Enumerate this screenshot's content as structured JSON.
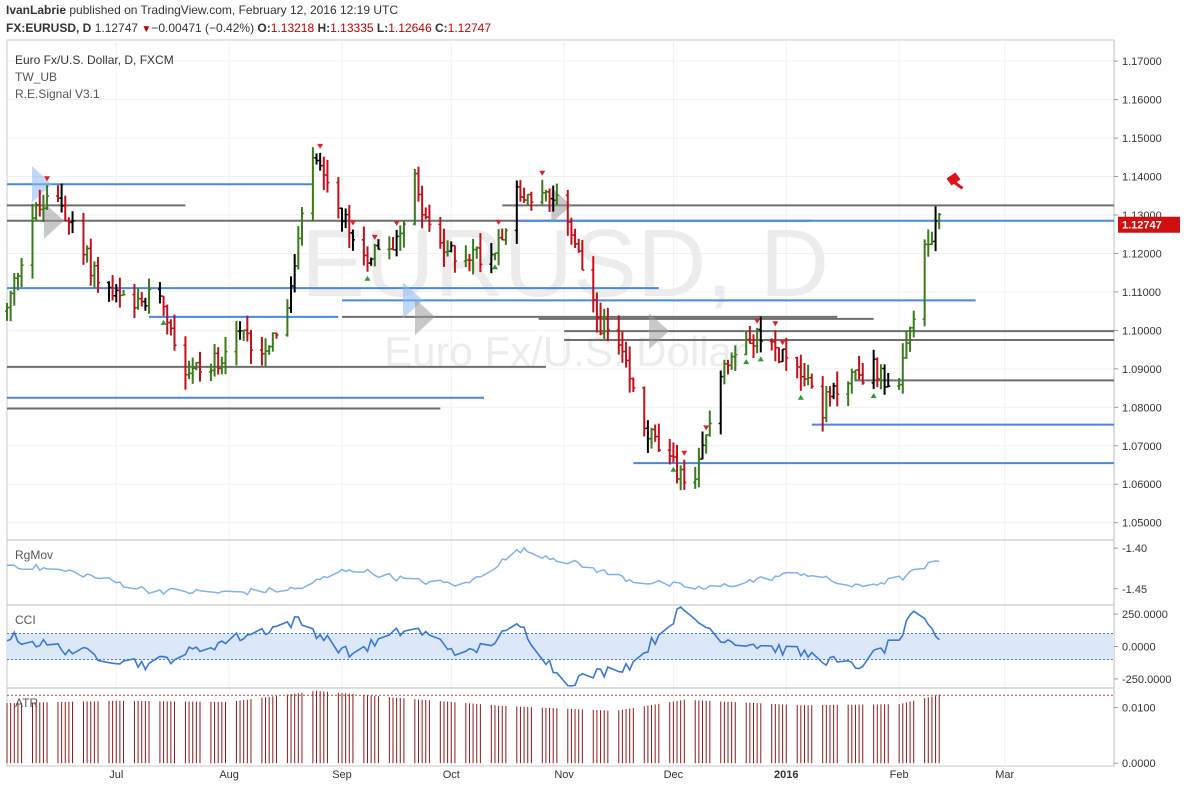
{
  "header": {
    "author": "IvanLabrie",
    "published": "published on TradingView.com, February 12, 2016 12:19 UTC",
    "symbol": "FX:EURUSD, D",
    "last": "1.12747",
    "change": "−0.00471 (−0.42%)",
    "o_label": "O:",
    "o_val": "1.13218",
    "h_label": "H:",
    "h_val": "1.13335",
    "l_label": "L:",
    "l_val": "1.12646",
    "c_label": "C:",
    "c_val": "1.12747"
  },
  "legend": {
    "title": "Euro Fx/U.S. Dollar, D, FXCM",
    "study1": "TW_UB",
    "study2": "R.E.Signal V3.1"
  },
  "watermark": {
    "big": "EURUSD, D",
    "small": "Euro Fx/U.S. Dollar"
  },
  "price_badge": "1.12747",
  "colors": {
    "up": "#3a7a1c",
    "down": "#c0101a",
    "neutral": "#000000",
    "level_blue": "#4a88e0",
    "level_gray": "#6e6e6e",
    "badge": "#d01010",
    "rgmov": "#7fb2ea",
    "cci": "#3a78d8",
    "atr": "#8b1a1a"
  },
  "chart_data": [
    {
      "type": "candlestick",
      "title": "Euro Fx/U.S. Dollar, D, FXCM",
      "ylim": [
        1.0455,
        1.1755
      ],
      "y_ticks": [
        "1.17000",
        "1.16000",
        "1.15000",
        "1.14000",
        "1.13000",
        "1.12000",
        "1.11000",
        "1.10000",
        "1.09000",
        "1.08000",
        "1.07000",
        "1.06000",
        "1.05000"
      ],
      "x_ticks": [
        "Jul",
        "Aug",
        "Sep",
        "Oct",
        "Nov",
        "Dec",
        "2016",
        "Feb",
        "Mar"
      ],
      "anchors": [
        [
          "2015-06-01",
          1.105
        ],
        [
          "2015-06-08",
          1.13
        ],
        [
          "2015-06-15",
          1.135
        ],
        [
          "2015-06-22",
          1.12
        ],
        [
          "2015-06-29",
          1.11
        ],
        [
          "2015-07-06",
          1.105
        ],
        [
          "2015-07-13",
          1.11
        ],
        [
          "2015-07-20",
          1.09
        ],
        [
          "2015-07-27",
          1.09
        ],
        [
          "2015-08-03",
          1.1
        ],
        [
          "2015-08-10",
          1.095
        ],
        [
          "2015-08-17",
          1.105
        ],
        [
          "2015-08-24",
          1.145
        ],
        [
          "2015-08-31",
          1.13
        ],
        [
          "2015-09-07",
          1.12
        ],
        [
          "2015-09-14",
          1.12
        ],
        [
          "2015-09-21",
          1.138
        ],
        [
          "2015-09-28",
          1.12
        ],
        [
          "2015-10-05",
          1.12
        ],
        [
          "2015-10-12",
          1.12
        ],
        [
          "2015-10-19",
          1.135
        ],
        [
          "2015-10-26",
          1.135
        ],
        [
          "2015-11-02",
          1.13
        ],
        [
          "2015-11-09",
          1.105
        ],
        [
          "2015-11-16",
          1.095
        ],
        [
          "2015-11-23",
          1.075
        ],
        [
          "2015-11-30",
          1.065
        ],
        [
          "2015-12-07",
          1.06
        ],
        [
          "2015-12-14",
          1.09
        ],
        [
          "2015-12-21",
          1.1
        ],
        [
          "2015-12-28",
          1.095
        ],
        [
          "2016-01-04",
          1.092
        ],
        [
          "2016-01-11",
          1.08
        ],
        [
          "2016-01-18",
          1.088
        ],
        [
          "2016-01-25",
          1.09
        ],
        [
          "2016-02-01",
          1.085
        ],
        [
          "2016-02-08",
          1.12
        ],
        [
          "2016-02-12",
          1.1275
        ]
      ],
      "levels": [
        {
          "price": 1.138,
          "color": "blue",
          "from": "2015-06-01",
          "to": "2015-08-24"
        },
        {
          "price": 1.1325,
          "color": "gray",
          "from": "2015-06-01",
          "to": "2015-07-20"
        },
        {
          "price": 1.1285,
          "color": "gray",
          "from": "2015-06-01",
          "to": "2016-01-08"
        },
        {
          "price": 1.1285,
          "color": "blue",
          "from": "2015-10-19",
          "to": "2016-03-31"
        },
        {
          "price": 1.1325,
          "color": "gray",
          "from": "2015-10-15",
          "to": "2016-03-31"
        },
        {
          "price": 1.111,
          "color": "blue",
          "from": "2015-06-01",
          "to": "2015-11-27"
        },
        {
          "price": 1.1078,
          "color": "blue",
          "from": "2015-09-01",
          "to": "2016-02-22"
        },
        {
          "price": 1.1035,
          "color": "blue",
          "from": "2015-07-10",
          "to": "2015-08-31"
        },
        {
          "price": 1.1035,
          "color": "gray",
          "from": "2015-09-01",
          "to": "2016-01-15"
        },
        {
          "price": 1.103,
          "color": "gray",
          "from": "2015-10-25",
          "to": "2016-01-25"
        },
        {
          "price": 1.0998,
          "color": "gray",
          "from": "2015-11-01",
          "to": "2016-03-31"
        },
        {
          "price": 1.0975,
          "color": "gray",
          "from": "2015-11-01",
          "to": "2016-03-31"
        },
        {
          "price": 1.0905,
          "color": "gray",
          "from": "2015-06-01",
          "to": "2015-10-27"
        },
        {
          "price": 1.087,
          "color": "gray",
          "from": "2016-01-20",
          "to": "2016-03-31"
        },
        {
          "price": 1.0825,
          "color": "blue",
          "from": "2015-06-01",
          "to": "2015-10-10"
        },
        {
          "price": 1.0797,
          "color": "gray",
          "from": "2015-06-01",
          "to": "2015-09-28"
        },
        {
          "price": 1.0755,
          "color": "blue",
          "from": "2016-01-08",
          "to": "2016-03-31"
        },
        {
          "price": 1.0655,
          "color": "blue",
          "from": "2015-11-20",
          "to": "2016-03-31"
        }
      ]
    },
    {
      "type": "line",
      "title": "RgMov",
      "ylim": [
        -1.47,
        -1.39
      ],
      "y_ticks": [
        "-1.40",
        "-1.45"
      ],
      "anchors": [
        [
          "2015-06-01",
          -1.42
        ],
        [
          "2015-06-20",
          -1.43
        ],
        [
          "2015-07-10",
          -1.452
        ],
        [
          "2015-08-01",
          -1.455
        ],
        [
          "2015-08-20",
          -1.45
        ],
        [
          "2015-09-03",
          -1.425
        ],
        [
          "2015-09-20",
          -1.44
        ],
        [
          "2015-10-05",
          -1.445
        ],
        [
          "2015-10-20",
          -1.402
        ],
        [
          "2015-11-01",
          -1.415
        ],
        [
          "2015-11-20",
          -1.44
        ],
        [
          "2015-12-10",
          -1.45
        ],
        [
          "2016-01-05",
          -1.43
        ],
        [
          "2016-01-20",
          -1.448
        ],
        [
          "2016-02-01",
          -1.438
        ],
        [
          "2016-02-12",
          -1.415
        ]
      ]
    },
    {
      "type": "line",
      "title": "CCI",
      "ylim": [
        -320,
        320
      ],
      "y_ticks": [
        "250.0000",
        "0.0000",
        "-250.0000"
      ],
      "band": [
        -100,
        100
      ],
      "anchors": [
        [
          "2015-06-01",
          80
        ],
        [
          "2015-06-20",
          -40
        ],
        [
          "2015-07-10",
          -140
        ],
        [
          "2015-08-01",
          50
        ],
        [
          "2015-08-20",
          200
        ],
        [
          "2015-09-03",
          -60
        ],
        [
          "2015-09-20",
          150
        ],
        [
          "2015-10-05",
          -70
        ],
        [
          "2015-10-20",
          160
        ],
        [
          "2015-11-01",
          -280
        ],
        [
          "2015-11-20",
          -130
        ],
        [
          "2015-12-03",
          280
        ],
        [
          "2015-12-15",
          60
        ],
        [
          "2016-01-05",
          -50
        ],
        [
          "2016-01-20",
          -160
        ],
        [
          "2016-02-01",
          60
        ],
        [
          "2016-02-05",
          250
        ],
        [
          "2016-02-12",
          70
        ]
      ]
    },
    {
      "type": "bar",
      "title": "ATR",
      "ylim": [
        -0.0005,
        0.0135
      ],
      "y_ticks": [
        "0.0100",
        "0.0000"
      ],
      "ref_line": 0.0122,
      "anchors": [
        [
          "2015-06-01",
          0.0108
        ],
        [
          "2015-07-01",
          0.0112
        ],
        [
          "2015-08-01",
          0.011
        ],
        [
          "2015-08-25",
          0.013
        ],
        [
          "2015-09-15",
          0.0118
        ],
        [
          "2015-10-15",
          0.0103
        ],
        [
          "2015-11-15",
          0.0094
        ],
        [
          "2015-12-04",
          0.0114
        ],
        [
          "2016-01-05",
          0.0104
        ],
        [
          "2016-02-01",
          0.0106
        ],
        [
          "2016-02-12",
          0.0123
        ]
      ]
    }
  ]
}
